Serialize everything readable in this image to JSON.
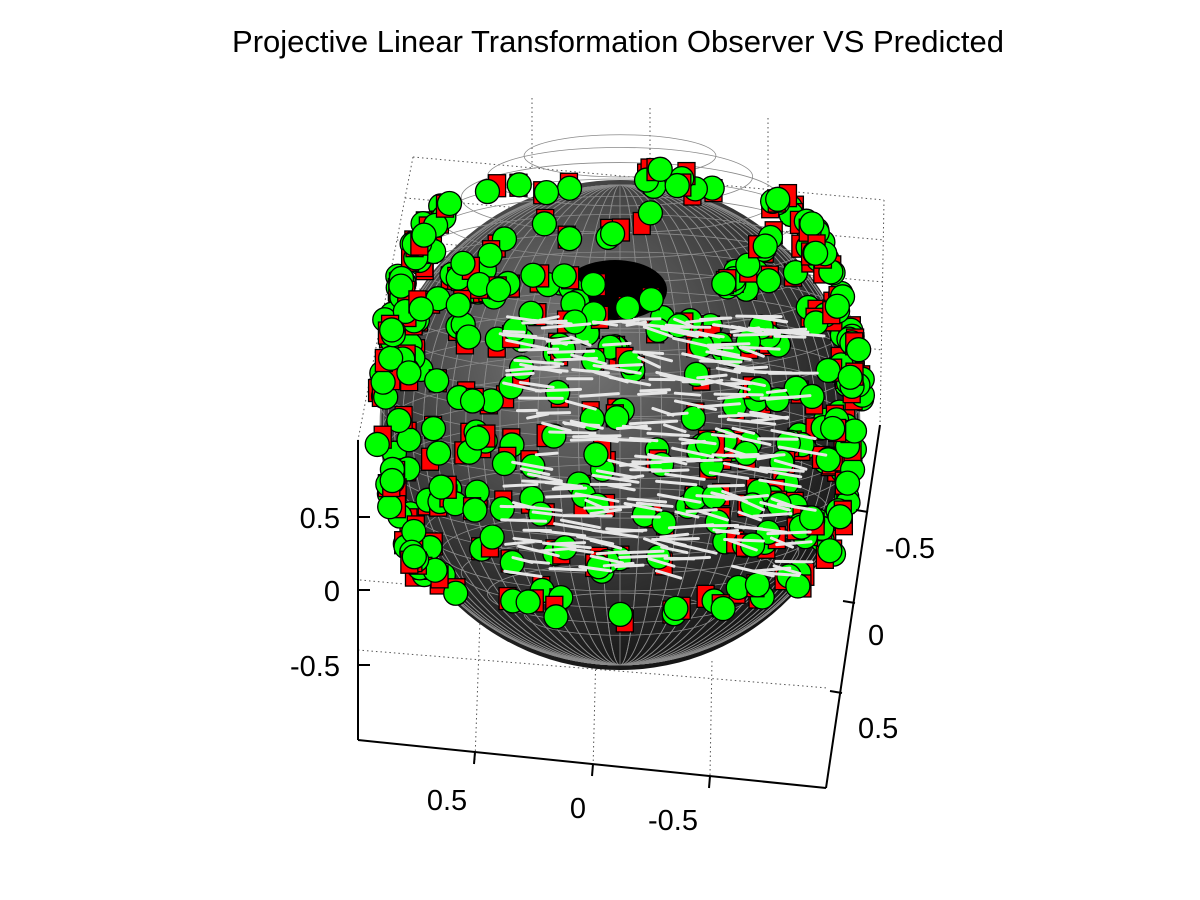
{
  "chart_data": {
    "type": "scatter",
    "title": "Projective Linear Transformation Observer VS Predicted",
    "xlabel": "",
    "ylabel": "",
    "zlabel": "",
    "xlim": [
      -1,
      1
    ],
    "ylim": [
      -1,
      1
    ],
    "zlim": [
      -1,
      1
    ],
    "x_ticks": [
      "0.5",
      "0",
      "-0.5"
    ],
    "y_ticks": [
      "-0.5",
      "0",
      "0.5"
    ],
    "z_ticks": [
      "0.5",
      "0",
      "-0.5"
    ],
    "grid": true,
    "surface": {
      "shape": "unit-sphere",
      "color": "#000000",
      "edge_color": "#8a8a8a"
    },
    "series": [
      {
        "marker": "square",
        "color": "#ff0000",
        "edge_color": "#000000"
      },
      {
        "marker": "circle",
        "color": "#00ff00",
        "edge_color": "#000000"
      },
      {
        "marker": "line",
        "color": "#e6e6e6"
      }
    ]
  }
}
